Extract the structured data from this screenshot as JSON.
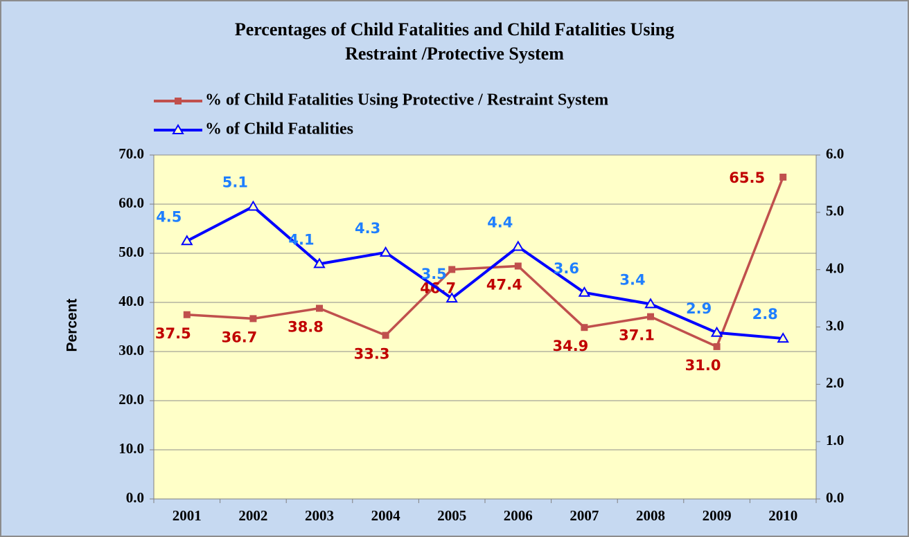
{
  "chart_data": {
    "type": "line",
    "title": [
      "Percentages of Child Fatalities and Child Fatalities Using",
      "Restraint /Protective System"
    ],
    "ylabel": "Percent",
    "categories": [
      "2001",
      "2002",
      "2003",
      "2004",
      "2005",
      "2006",
      "2007",
      "2008",
      "2009",
      "2010"
    ],
    "series": [
      {
        "name": "% of Child Fatalities Using Protective / Restraint System",
        "color": "#c0504d",
        "axis": "y",
        "values": [
          37.5,
          36.7,
          38.8,
          33.3,
          46.7,
          47.4,
          34.9,
          37.1,
          31.0,
          65.5
        ],
        "value_labels": [
          "37.5",
          "36.7",
          "38.8",
          "33.3",
          "46.7",
          "47.4",
          "34.9",
          "37.1",
          "31.0",
          "65.5"
        ],
        "label_color": "#c00000"
      },
      {
        "name": "% of Child Fatalities",
        "color": "#0000ff",
        "axis": "y2",
        "values": [
          4.5,
          5.1,
          4.1,
          4.3,
          3.5,
          4.4,
          3.6,
          3.4,
          2.9,
          2.8
        ],
        "label_color": "#1f7fff"
      }
    ],
    "ylim": [
      0,
      70
    ],
    "yticks": [
      {
        "value": 0,
        "label": "0.0"
      },
      {
        "value": 10,
        "label": "10.0"
      },
      {
        "value": 20,
        "label": "20.0"
      },
      {
        "value": 30,
        "label": "30.0"
      },
      {
        "value": 40,
        "label": "40.0"
      },
      {
        "value": 50,
        "label": "50.0"
      },
      {
        "value": 60,
        "label": "60.0"
      },
      {
        "value": 70,
        "label": "70.0"
      }
    ],
    "y2lim": [
      0,
      6
    ],
    "y2ticks": [
      {
        "value": 0,
        "label": "0.0"
      },
      {
        "value": 1,
        "label": "1.0"
      },
      {
        "value": 2,
        "label": "2.0"
      },
      {
        "value": 3,
        "label": "3.0"
      },
      {
        "value": 4,
        "label": "4.0"
      },
      {
        "value": 5,
        "label": "5.0"
      },
      {
        "value": 6,
        "label": "6.0"
      }
    ],
    "grid": true
  }
}
